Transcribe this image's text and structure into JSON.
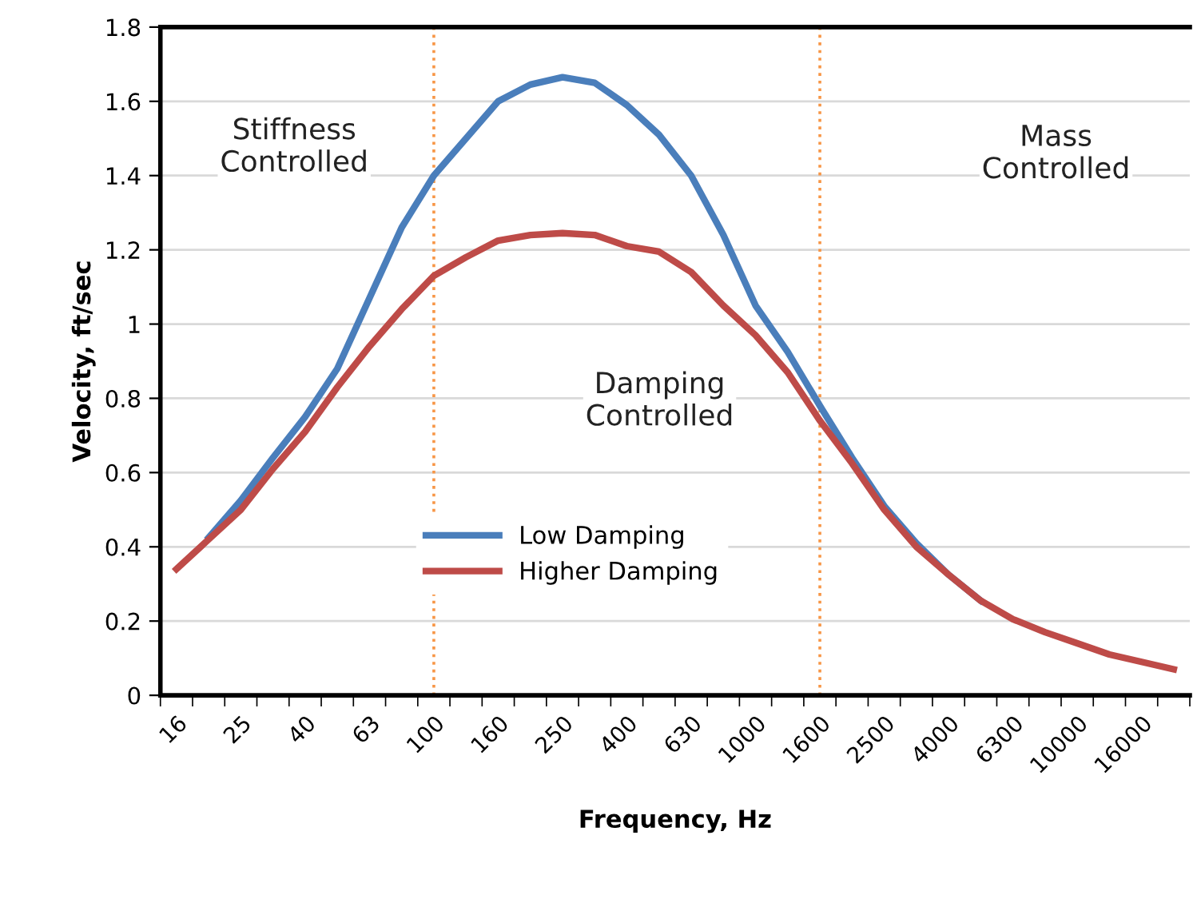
{
  "chart_data": {
    "type": "line",
    "xlabel": "Frequency, Hz",
    "ylabel": "Velocity, ft/sec",
    "categories": [
      "16",
      null,
      "25",
      null,
      "40",
      null,
      "63",
      null,
      "100",
      null,
      "160",
      null,
      "250",
      null,
      "400",
      null,
      "630",
      null,
      "1000",
      null,
      "1600",
      null,
      "2500",
      null,
      "4000",
      null,
      "6300",
      null,
      "10000",
      null,
      "16000",
      null
    ],
    "series": [
      {
        "name": "Low Damping",
        "color": "#4a7ebb",
        "values": [
          null,
          0.425,
          0.525,
          0.64,
          0.75,
          0.88,
          1.07,
          1.26,
          1.4,
          1.5,
          1.6,
          1.645,
          1.665,
          1.65,
          1.59,
          1.51,
          1.4,
          1.24,
          1.05,
          0.925,
          0.78,
          0.64,
          0.51,
          0.41,
          0.325,
          0.255,
          null,
          null,
          null,
          null,
          null,
          null
        ]
      },
      {
        "name": "Higher Damping",
        "color": "#be4b48",
        "values": [
          0.34,
          0.42,
          0.5,
          0.61,
          0.71,
          0.83,
          0.94,
          1.04,
          1.13,
          1.18,
          1.225,
          1.24,
          1.245,
          1.24,
          1.21,
          1.195,
          1.14,
          1.05,
          0.97,
          0.87,
          0.74,
          0.625,
          0.5,
          0.4,
          0.325,
          0.255,
          0.205,
          0.17,
          0.14,
          0.11,
          0.09,
          0.07
        ]
      }
    ],
    "ylim": [
      0,
      1.8
    ],
    "yticks": [
      0,
      0.2,
      0.4,
      0.6,
      0.8,
      1,
      1.2,
      1.4,
      1.6,
      1.8
    ],
    "grid": "y",
    "legend": "center",
    "marker": "none",
    "line_style": "solid",
    "ref_lines": [
      {
        "axis": "x",
        "value": "100",
        "color": "#f79646",
        "line_style": "dotted"
      },
      {
        "axis": "x",
        "value": "1600",
        "color": "#f79646",
        "line_style": "dotted"
      }
    ],
    "annotations": [
      "Stiffness\nControlled",
      "Damping\nControlled",
      "Mass\nControlled"
    ]
  }
}
